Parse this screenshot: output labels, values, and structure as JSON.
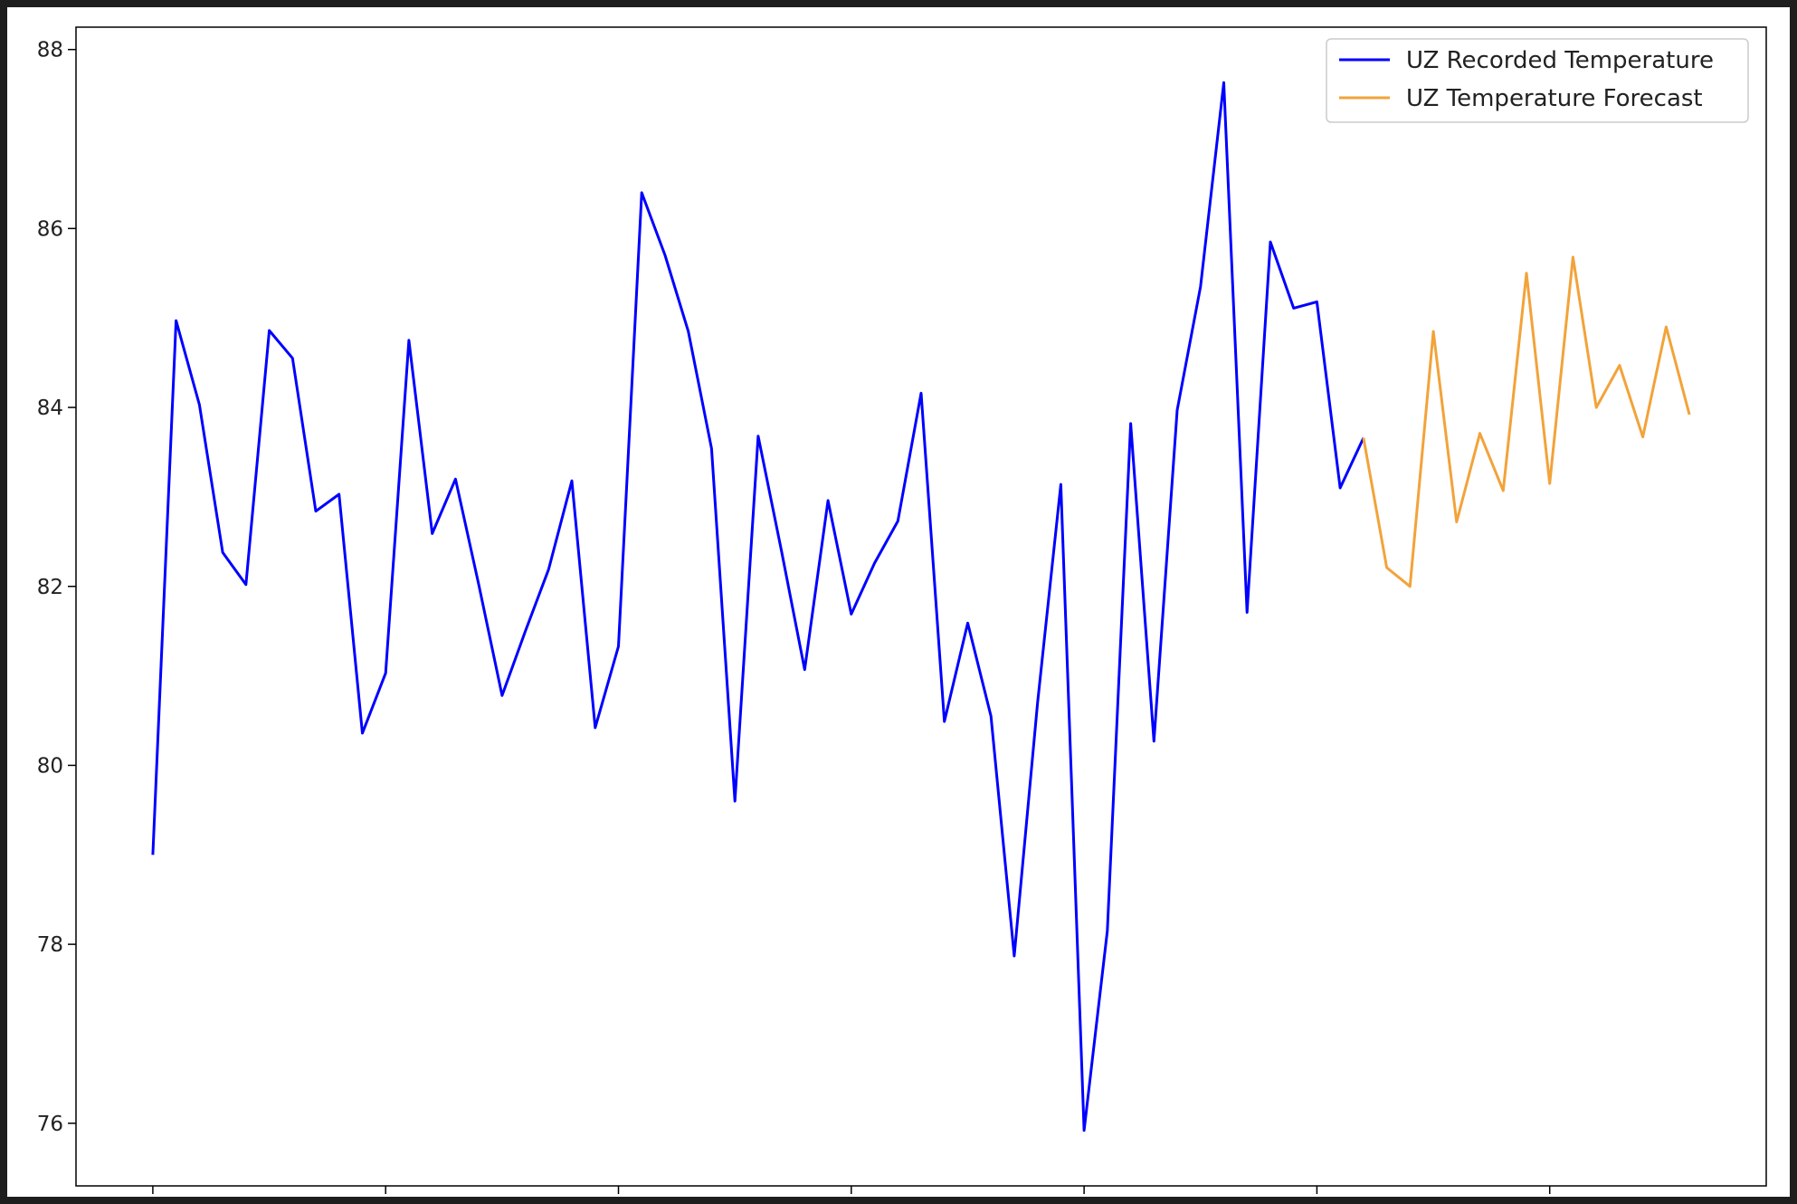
{
  "chart_data": {
    "type": "line",
    "title": "",
    "xlabel": "",
    "ylabel": "",
    "xlim": [
      1956.7,
      2029.3
    ],
    "ylim": [
      75.3,
      88.25
    ],
    "xticks": [
      1960,
      1970,
      1980,
      1990,
      2000,
      2010,
      2020
    ],
    "yticks": [
      76,
      78,
      80,
      82,
      84,
      86,
      88
    ],
    "grid": false,
    "legend_position": "top-right",
    "series": [
      {
        "name": "UZ Recorded Temperature",
        "color": "#0000ff",
        "x": [
          1960,
          1961,
          1962,
          1963,
          1964,
          1965,
          1966,
          1967,
          1968,
          1969,
          1970,
          1971,
          1972,
          1973,
          1974,
          1975,
          1976,
          1977,
          1978,
          1979,
          1980,
          1981,
          1982,
          1983,
          1984,
          1985,
          1986,
          1987,
          1988,
          1989,
          1990,
          1991,
          1992,
          1993,
          1994,
          1995,
          1996,
          1997,
          1998,
          1999,
          2000,
          2001,
          2002,
          2003,
          2004,
          2005,
          2006,
          2007,
          2008,
          2009,
          2010,
          2011,
          2012
        ],
        "y": [
          79.0,
          84.97,
          84.03,
          82.38,
          82.02,
          84.86,
          84.55,
          82.84,
          83.03,
          80.36,
          81.03,
          84.75,
          82.59,
          83.2,
          82.02,
          80.78,
          81.5,
          82.19,
          83.18,
          80.42,
          81.33,
          86.4,
          85.7,
          84.85,
          83.54,
          79.6,
          83.68,
          82.4,
          81.07,
          82.96,
          81.69,
          82.26,
          82.73,
          84.16,
          80.49,
          81.59,
          80.55,
          77.87,
          80.7,
          83.14,
          75.92,
          78.15,
          83.82,
          80.27,
          83.97,
          85.35,
          87.63,
          81.71,
          85.85,
          85.11,
          85.18,
          83.1,
          83.66
        ]
      },
      {
        "name": "UZ Temperature Forecast",
        "color": "#f2a33a",
        "x": [
          2012,
          2013,
          2014,
          2015,
          2016,
          2017,
          2018,
          2019,
          2020,
          2021,
          2022,
          2023,
          2024,
          2025,
          2026
        ],
        "y": [
          83.66,
          82.21,
          82.0,
          84.85,
          82.72,
          83.71,
          83.07,
          85.5,
          83.15,
          85.68,
          84.0,
          84.47,
          83.67,
          84.9,
          83.92
        ]
      }
    ]
  }
}
